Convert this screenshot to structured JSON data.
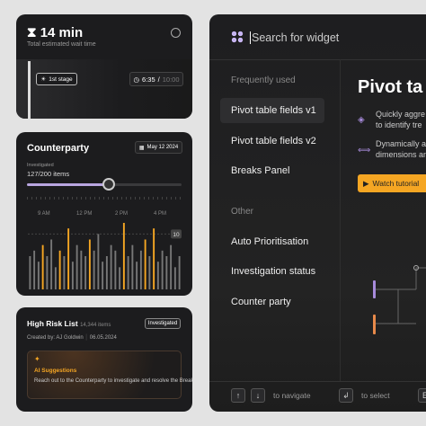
{
  "wait_card": {
    "duration": "14 min",
    "caption": "Total estimated wait time",
    "stage": "1st stage",
    "elapsed": "6:35",
    "separator": "/",
    "total": "10:00"
  },
  "counterparty_card": {
    "title": "Counterparty",
    "date": "May 12 2024",
    "progress_label": "Investigated",
    "progress_text": "127/200 items",
    "time_labels": [
      "9 AM",
      "12 PM",
      "2 PM",
      "4 PM"
    ],
    "chart_data": {
      "type": "bar",
      "ylim": [
        0,
        12
      ],
      "yticks": [
        10
      ],
      "values": [
        6,
        7,
        5,
        8,
        6,
        9,
        4,
        7,
        6,
        11,
        5,
        8,
        7,
        6,
        9,
        7,
        10,
        5,
        6,
        8,
        7,
        4,
        12,
        6,
        8,
        5,
        7,
        9,
        6,
        11,
        5,
        7,
        6,
        8,
        4,
        6
      ],
      "colors": [
        "#777",
        "#777",
        "#777",
        "#f5a623",
        "#777",
        "#777",
        "#777",
        "#f5a623",
        "#777",
        "#f5a623",
        "#777",
        "#777",
        "#777",
        "#777",
        "#f5a623",
        "#777",
        "#777",
        "#777",
        "#777",
        "#777",
        "#777",
        "#777",
        "#f5a623",
        "#777",
        "#777",
        "#777",
        "#777",
        "#f5a623",
        "#777",
        "#f5a623",
        "#777",
        "#777",
        "#777",
        "#777",
        "#777",
        "#777"
      ]
    }
  },
  "risk_card": {
    "title": "High Risk List",
    "count": "14,344 items",
    "status": "Investigated",
    "created_by": "Created by: AJ Goldwin",
    "date": "06.05.2024",
    "ai": {
      "title": "AI Suggestions",
      "text": "Reach out to the Counterparty to investigate and resolve the Break"
    }
  },
  "widget_panel": {
    "search_placeholder": "Search for widget",
    "sections": [
      {
        "title": "Frequently used",
        "items": [
          "Pivot table fields v1",
          "Pivot table fields v2",
          "Breaks Panel"
        ]
      },
      {
        "title": "Other",
        "items": [
          "Auto Prioritisation",
          "Investigation status",
          "Counter party"
        ]
      }
    ],
    "preview": {
      "title": "Pivot ta",
      "features": [
        [
          "Quickly aggre",
          "to identify tre"
        ],
        [
          "Dynamically a",
          "dimensions an"
        ]
      ],
      "button": "Watch tutorial"
    },
    "footer": {
      "navigate": "to navigate",
      "select": "to select",
      "more": "E"
    }
  }
}
